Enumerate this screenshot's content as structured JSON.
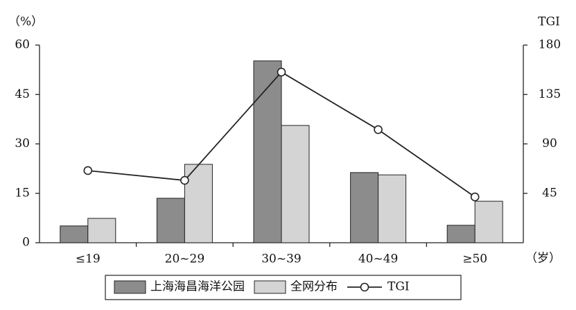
{
  "chart_data": {
    "type": "bar",
    "y_label": "（%）",
    "y2_label": "TGI",
    "x_label": "（岁）",
    "categories": [
      "≤19",
      "20~29",
      "30~39",
      "40~49",
      "≥50"
    ],
    "series": [
      {
        "name": "上海海昌海洋公园",
        "color": "#8c8c8c",
        "values": [
          5.1,
          13.5,
          55.2,
          21.3,
          5.3
        ]
      },
      {
        "name": "全网分布",
        "color": "#d4d4d4",
        "values": [
          7.4,
          23.8,
          35.6,
          20.6,
          12.6
        ]
      },
      {
        "name": "TGI",
        "type": "line",
        "axis": "y2",
        "color": "#222222",
        "values": [
          65.7,
          56.8,
          155.4,
          103,
          41.7
        ]
      }
    ],
    "ylim": [
      0,
      60
    ],
    "yticks": [
      0,
      15,
      30,
      45,
      60
    ],
    "y2lim": [
      0,
      180
    ],
    "y2ticks": [
      45,
      90,
      135,
      180
    ],
    "legend": "bottom"
  }
}
